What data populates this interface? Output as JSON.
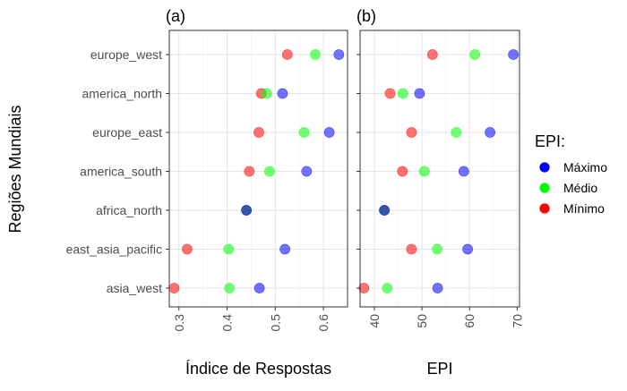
{
  "figure": {
    "y_axis_title": "Regiões Mundiais",
    "regions": [
      "europe_west",
      "america_north",
      "europe_east",
      "america_south",
      "africa_north",
      "east_asia_pacific",
      "asia_west"
    ],
    "legend": {
      "title": "EPI:",
      "placement": "right",
      "items": [
        {
          "label": "Máximo",
          "color": "#0000FF"
        },
        {
          "label": "Médio",
          "color": "#00FF00"
        },
        {
          "label": "Mínimo",
          "color": "#FF0000"
        }
      ]
    }
  },
  "chart_data": [
    {
      "type": "scatter",
      "panel_label": "(a)",
      "xlabel": "Índice de Respostas",
      "ylabel": "Regiões Mundiais",
      "xlim": [
        0.28,
        0.65
      ],
      "xticks": [
        0.3,
        0.4,
        0.5,
        0.6
      ],
      "xtick_labels": [
        "0.3",
        "0.4",
        "0.5",
        "0.6"
      ],
      "grid": true,
      "categories": [
        "europe_west",
        "america_north",
        "europe_east",
        "america_south",
        "africa_north",
        "east_asia_pacific",
        "asia_west"
      ],
      "series": [
        {
          "name": "Máximo",
          "color": "#0000FF",
          "values": [
            0.632,
            0.515,
            0.612,
            0.565,
            0.44,
            0.52,
            0.467
          ]
        },
        {
          "name": "Médio",
          "color": "#00FF00",
          "values": [
            0.583,
            0.482,
            0.56,
            0.488,
            0.44,
            0.403,
            0.405
          ]
        },
        {
          "name": "Mínimo",
          "color": "#FF0000",
          "values": [
            0.525,
            0.471,
            0.466,
            0.446,
            0.44,
            0.317,
            0.29
          ]
        }
      ]
    },
    {
      "type": "scatter",
      "panel_label": "(b)",
      "xlabel": "EPI",
      "ylabel": "",
      "xlim": [
        37,
        70.5
      ],
      "xticks": [
        40,
        50,
        60,
        70
      ],
      "xtick_labels": [
        "40",
        "50",
        "60",
        "70"
      ],
      "grid": true,
      "categories": [
        "europe_west",
        "america_north",
        "europe_east",
        "america_south",
        "africa_north",
        "east_asia_pacific",
        "asia_west"
      ],
      "series": [
        {
          "name": "Máximo",
          "color": "#0000FF",
          "values": [
            69.2,
            49.5,
            64.3,
            58.8,
            42.1,
            59.6,
            53.3
          ]
        },
        {
          "name": "Médio",
          "color": "#00FF00",
          "values": [
            61.1,
            46.0,
            57.2,
            50.5,
            42.1,
            53.2,
            42.7
          ]
        },
        {
          "name": "Mínimo",
          "color": "#FF0000",
          "values": [
            52.2,
            43.3,
            47.8,
            45.9,
            42.1,
            47.8,
            37.8
          ]
        }
      ]
    }
  ]
}
